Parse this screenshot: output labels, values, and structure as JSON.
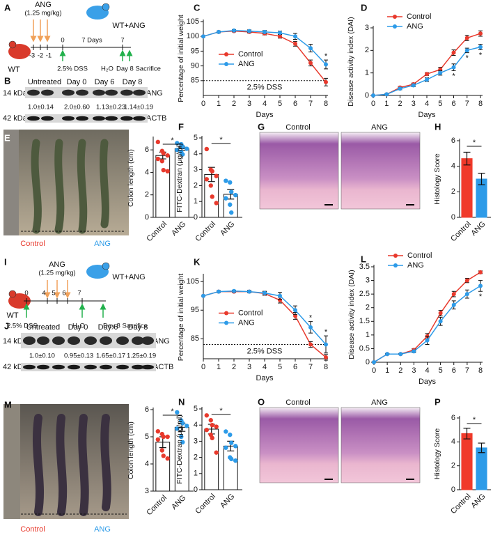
{
  "schematics": [
    {
      "label": "A",
      "drug": "ANG",
      "dose": "(1.25 mg/kg)",
      "start": "WT",
      "end": "WT+ANG",
      "ticks": [
        "-3",
        "-2",
        "-1",
        "0",
        "7"
      ],
      "interval": "7 Days",
      "dss": "2.5% DSS",
      "water": "H₂O",
      "sacrifice": "Day 8 Sacrifice"
    },
    {
      "label": "I",
      "drug": "ANG",
      "dose": "(1.25 mg/kg)",
      "start": "WT",
      "end": "WT+ANG",
      "ticks": [
        "0",
        "4",
        "5",
        "6",
        "7"
      ],
      "dss": "2.5% DSS",
      "water": "H₂O",
      "sacrifice": "Day 8 Sacrifice"
    }
  ],
  "blots": [
    {
      "label": "B",
      "lanes": [
        "Untreated",
        "Day 0",
        "Day 6",
        "Day 8"
      ],
      "markers": [
        "14 kDa",
        "42 kDa"
      ],
      "proteins": [
        "ANG",
        "ACTB"
      ],
      "quantification": [
        "1.0±0.14",
        "2.0±0.60",
        "1.13±0.23",
        "1.14±0.19"
      ]
    },
    {
      "label": "J",
      "lanes": [
        "Untreated",
        "Day 0",
        "Day 6",
        "Day 8"
      ],
      "markers": [
        "14 kDa",
        "42 kDa"
      ],
      "proteins": [
        "ANG",
        "ACTB"
      ],
      "quantification": [
        "1.0±0.10",
        "0.95±0.13",
        "1.65±0.17",
        "1.25±0.19"
      ]
    }
  ],
  "images": [
    {
      "label": "E",
      "captions": [
        "Control",
        "ANG"
      ]
    },
    {
      "label": "G",
      "captions": [
        "Control",
        "ANG"
      ]
    },
    {
      "label": "M",
      "captions": [
        "Control",
        "ANG"
      ]
    },
    {
      "label": "O",
      "captions": [
        "Control",
        "ANG"
      ]
    }
  ],
  "chart_data": [
    {
      "type": "line",
      "label": "C",
      "xlabel": "Days",
      "ylabel": "Percentage of initial weight",
      "x": [
        0,
        1,
        2,
        3,
        4,
        5,
        6,
        7,
        8
      ],
      "xlim": [
        0,
        8
      ],
      "xticks": [
        0,
        1,
        2,
        3,
        4,
        5,
        6,
        7,
        8
      ],
      "ylim": [
        80,
        105
      ],
      "yticks": [
        85,
        90,
        95,
        100,
        105
      ],
      "legend": "center-left",
      "reference_line": {
        "value": 85,
        "label": "2.5% DSS"
      },
      "series": [
        {
          "name": "Control",
          "color": "#e8392c",
          "values": [
            100,
            101.5,
            101.8,
            101.5,
            101,
            100,
            97.5,
            91,
            84.5
          ],
          "errors": [
            0,
            0.3,
            0.3,
            0.4,
            0.5,
            0.6,
            0.8,
            1,
            1.3
          ]
        },
        {
          "name": "ANG",
          "color": "#2d9be8",
          "values": [
            100,
            101.5,
            102,
            101.8,
            101.5,
            101.2,
            100,
            96,
            90.5
          ],
          "errors": [
            0,
            0.3,
            0.3,
            0.4,
            0.5,
            0.6,
            1,
            1.3,
            1.5
          ]
        }
      ],
      "annotations": [
        {
          "text": "*",
          "x": 8,
          "side": "above"
        }
      ]
    },
    {
      "type": "line",
      "label": "D",
      "xlabel": "Days",
      "ylabel": "Disease activity index (DAI)",
      "x": [
        0,
        1,
        2,
        3,
        4,
        5,
        6,
        7,
        8
      ],
      "xlim": [
        0,
        8
      ],
      "xticks": [
        0,
        1,
        2,
        3,
        4,
        5,
        6,
        7,
        8
      ],
      "ylim": [
        0,
        3
      ],
      "yticks": [
        0,
        1,
        2,
        3
      ],
      "legend": "upper-left",
      "series": [
        {
          "name": "Control",
          "color": "#e8392c",
          "values": [
            0,
            0.05,
            0.35,
            0.5,
            0.95,
            1.15,
            1.9,
            2.55,
            2.75
          ],
          "errors": [
            0,
            0.02,
            0.05,
            0.05,
            0.06,
            0.1,
            0.12,
            0.12,
            0.12
          ]
        },
        {
          "name": "ANG",
          "color": "#2d9be8",
          "values": [
            0,
            0.05,
            0.3,
            0.45,
            0.7,
            1.0,
            1.25,
            2.0,
            2.15
          ],
          "errors": [
            0,
            0.02,
            0.05,
            0.06,
            0.08,
            0.1,
            0.15,
            0.1,
            0.12
          ]
        }
      ],
      "annotations": [
        {
          "text": "*",
          "x": 6,
          "side": "below"
        },
        {
          "text": "*",
          "x": 7,
          "side": "below"
        },
        {
          "text": "*",
          "x": 8,
          "side": "below"
        }
      ]
    },
    {
      "type": "bar",
      "ylabel": "Colon length (cm)",
      "categories": [
        "Control",
        "ANG"
      ],
      "values": [
        5.5,
        6.1
      ],
      "errors": [
        0.3,
        0.15
      ],
      "points": [
        [
          6.7,
          5.9,
          5.7,
          5.5,
          5.2,
          5.0,
          4.2,
          4.1
        ],
        [
          6.6,
          6.5,
          6.3,
          6.1,
          6.0,
          5.8,
          5.6
        ]
      ],
      "colors": [
        "#e8392c",
        "#2d9be8"
      ],
      "filled": false,
      "ylim": [
        0,
        7
      ],
      "yticks": [
        0,
        2,
        4,
        6
      ],
      "significance": "*"
    },
    {
      "type": "bar",
      "label": "F",
      "ylabel": "FITC-Dextran (μg/ml)",
      "categories": [
        "Control",
        "ANG"
      ],
      "values": [
        2.7,
        1.45
      ],
      "errors": [
        0.45,
        0.3
      ],
      "points": [
        [
          4.3,
          3.0,
          2.9,
          2.6,
          2.4,
          2.0,
          1.3,
          0.9
        ],
        [
          2.3,
          2.2,
          1.6,
          1.4,
          1.2,
          0.8,
          0.3
        ]
      ],
      "colors": [
        "#e8392c",
        "#2d9be8"
      ],
      "filled": false,
      "ylim": [
        0,
        5
      ],
      "yticks": [
        0,
        1,
        2,
        3,
        4,
        5
      ],
      "significance": "*"
    },
    {
      "type": "bar",
      "label": "H",
      "ylabel": "Histology Score",
      "categories": [
        "Control",
        "ANG"
      ],
      "values": [
        4.6,
        3.0
      ],
      "errors": [
        0.5,
        0.45
      ],
      "colors": [
        "#f03a2a",
        "#2d9be8"
      ],
      "filled": true,
      "ylim": [
        0,
        6
      ],
      "yticks": [
        0,
        2,
        4,
        6
      ],
      "significance": "*"
    },
    {
      "type": "line",
      "label": "K",
      "xlabel": "Days",
      "ylabel": "Percentage of initial weight",
      "x": [
        0,
        1,
        2,
        3,
        4,
        5,
        6,
        7,
        8
      ],
      "xlim": [
        0,
        8
      ],
      "xticks": [
        0,
        1,
        2,
        3,
        4,
        5,
        6,
        7,
        8
      ],
      "ylim": [
        78,
        107
      ],
      "yticks": [
        85,
        95,
        105
      ],
      "legend": "center-left",
      "reference_line": {
        "value": 83,
        "label": "2.5% DSS"
      },
      "series": [
        {
          "name": "Control",
          "color": "#e8392c",
          "values": [
            100,
            101.5,
            101.5,
            101.5,
            100.8,
            98.5,
            93,
            83,
            78.5
          ],
          "errors": [
            0,
            0.3,
            0.3,
            0.4,
            0.6,
            1,
            1.2,
            1,
            1
          ]
        },
        {
          "name": "ANG",
          "color": "#2d9be8",
          "values": [
            100,
            101.5,
            101.7,
            101.5,
            101,
            100,
            95,
            89,
            83
          ],
          "errors": [
            0,
            0.3,
            0.3,
            0.4,
            0.6,
            1.2,
            1.5,
            2,
            3
          ]
        }
      ],
      "annotations": [
        {
          "text": "*",
          "x": 7,
          "side": "above"
        },
        {
          "text": "*",
          "x": 8,
          "side": "above"
        }
      ]
    },
    {
      "type": "line",
      "label": "L",
      "xlabel": "Days",
      "ylabel": "Disease activity index (DAI)",
      "x": [
        0,
        1,
        2,
        3,
        4,
        5,
        6,
        7,
        8
      ],
      "xlim": [
        0,
        8
      ],
      "xticks": [
        0,
        1,
        2,
        3,
        4,
        5,
        6,
        7,
        8
      ],
      "ylim": [
        0,
        3.5
      ],
      "yticks": [
        0,
        0.5,
        1,
        1.5,
        2,
        2.5,
        3,
        3.5
      ],
      "legend": "upper-left",
      "series": [
        {
          "name": "Control",
          "color": "#e8392c",
          "values": [
            0,
            0.3,
            0.3,
            0.45,
            0.95,
            1.8,
            2.5,
            3.0,
            3.3
          ],
          "errors": [
            0,
            0.02,
            0.02,
            0.05,
            0.1,
            0.1,
            0.1,
            0.08,
            0.05
          ]
        },
        {
          "name": "ANG",
          "color": "#2d9be8",
          "values": [
            0,
            0.3,
            0.3,
            0.4,
            0.8,
            1.5,
            2.1,
            2.5,
            2.8
          ],
          "errors": [
            0,
            0.02,
            0.02,
            0.05,
            0.15,
            0.15,
            0.15,
            0.15,
            0.2
          ]
        }
      ],
      "annotations": [
        {
          "text": "*",
          "x": 8,
          "side": "below"
        }
      ]
    },
    {
      "type": "bar",
      "ylabel": "Colon length (cm)",
      "categories": [
        "Control",
        "ANG"
      ],
      "values": [
        4.8,
        5.35
      ],
      "errors": [
        0.2,
        0.15
      ],
      "points": [
        [
          5.2,
          5.1,
          5.0,
          5.0,
          4.9,
          4.5,
          4.3,
          4.2
        ],
        [
          5.9,
          5.6,
          5.5,
          5.4,
          5.3,
          5.0,
          4.8
        ]
      ],
      "colors": [
        "#e8392c",
        "#2d9be8"
      ],
      "filled": false,
      "ylim": [
        3,
        6
      ],
      "yticks": [
        3,
        4,
        5,
        6
      ],
      "significance": "*"
    },
    {
      "type": "bar",
      "label": "N",
      "ylabel": "FITC-Dextran (μg/ml)",
      "categories": [
        "Control",
        "ANG"
      ],
      "values": [
        3.75,
        2.7
      ],
      "errors": [
        0.3,
        0.3
      ],
      "points": [
        [
          4.6,
          4.3,
          4.0,
          3.9,
          3.7,
          3.4,
          3.2,
          2.3
        ],
        [
          3.6,
          3.4,
          2.9,
          2.7,
          2.6,
          2.0,
          1.9,
          1.8
        ]
      ],
      "colors": [
        "#e8392c",
        "#2d9be8"
      ],
      "filled": false,
      "ylim": [
        0,
        5
      ],
      "yticks": [
        0,
        1,
        2,
        3,
        4,
        5
      ],
      "significance": "*"
    },
    {
      "type": "bar",
      "label": "P",
      "ylabel": "Histology Score",
      "categories": [
        "Control",
        "ANG"
      ],
      "values": [
        4.7,
        3.5
      ],
      "errors": [
        0.45,
        0.4
      ],
      "colors": [
        "#f03a2a",
        "#2d9be8"
      ],
      "filled": true,
      "ylim": [
        0,
        6
      ],
      "yticks": [
        0,
        2,
        4,
        6
      ],
      "significance": "*"
    }
  ]
}
